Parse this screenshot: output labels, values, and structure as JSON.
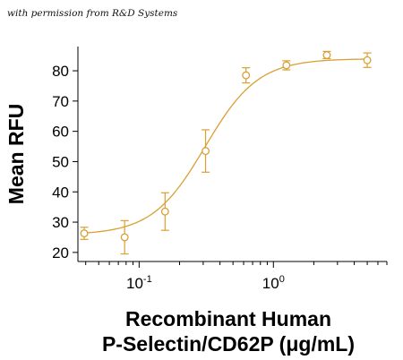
{
  "attribution": "with permission from R&D Systems",
  "chart_data": {
    "type": "scatter",
    "title": "",
    "ylabel": "Mean RFU",
    "xlabel_lines": [
      "Recombinant Human",
      "P-Selectin/CD62P (μg/mL)"
    ],
    "xscale": "log",
    "xlim": [
      0.035,
      7
    ],
    "ylim": [
      17,
      88
    ],
    "y_ticks": [
      20,
      30,
      40,
      50,
      60,
      70,
      80
    ],
    "x_major_ticks": [
      {
        "value": 0.1,
        "base": "10",
        "exp": "-1"
      },
      {
        "value": 1,
        "base": "10",
        "exp": "0"
      }
    ],
    "fit": {
      "bottom": 25.8,
      "top": 84.0,
      "ec50": 0.31,
      "hill": 2.2
    },
    "color": "#D9A033",
    "points": [
      {
        "x": 0.039,
        "y": 26.3,
        "err": 2.0
      },
      {
        "x": 0.078,
        "y": 25.0,
        "err": 5.5
      },
      {
        "x": 0.156,
        "y": 33.5,
        "err": 6.2
      },
      {
        "x": 0.3125,
        "y": 53.5,
        "err": 7.0
      },
      {
        "x": 0.625,
        "y": 78.5,
        "err": 2.5
      },
      {
        "x": 1.25,
        "y": 81.8,
        "err": 1.5
      },
      {
        "x": 2.5,
        "y": 85.2,
        "err": 1.2
      },
      {
        "x": 5.0,
        "y": 83.5,
        "err": 2.4
      }
    ],
    "grid": false,
    "legend": "none"
  }
}
